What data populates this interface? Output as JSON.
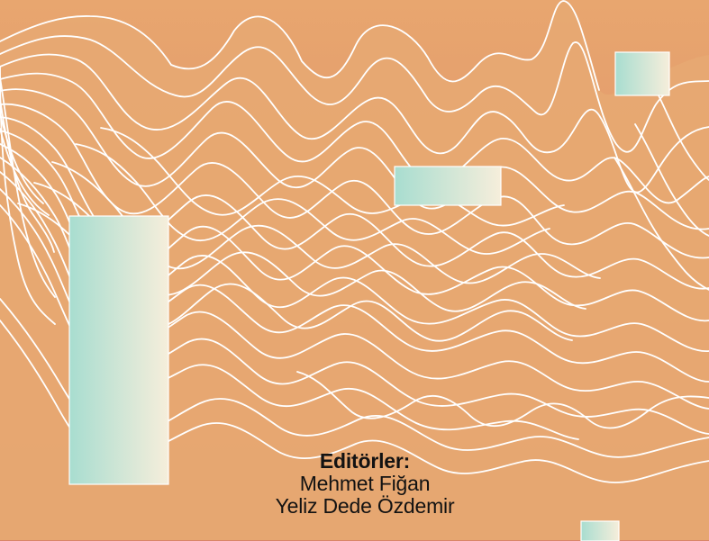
{
  "credits": {
    "heading": "Editörler:",
    "names": [
      "Mehmet Fiğan",
      "Yeliz Dede Özdemir"
    ]
  },
  "palette": {
    "gradient_top": "#e8a56e",
    "gradient_bottom": "#d98467",
    "mountain_fill": "#e6a770",
    "line": "#ffffff",
    "panel_left": "#a9ded1",
    "panel_right": "#f5edd8"
  },
  "decorations": [
    "mountain-contour-lines",
    "gradient-panels"
  ]
}
